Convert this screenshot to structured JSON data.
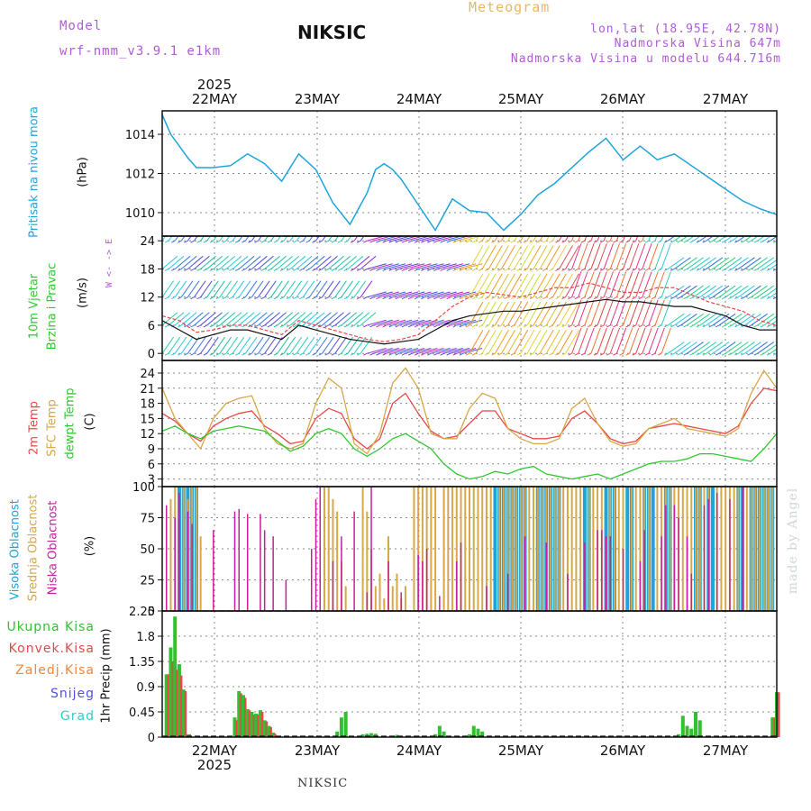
{
  "header": {
    "model_label": "Model",
    "model_name": "wrf-nmm_v3.9.1 e1km",
    "meteogram_label": "Meteogram",
    "station": "NIKSIC",
    "lonlat": "lon,lat (18.95E, 42.78N)",
    "altitude": "Nadmorska Visina 647m",
    "model_altitude": "Nadmorska Visina u modelu 644.716m"
  },
  "colors": {
    "pressure": "#1ea4dc",
    "t2m": "#e84848",
    "sfc": "#d8a848",
    "dewpt": "#30c830",
    "high_cloud": "#1ea4dc",
    "mid_cloud": "#d8a848",
    "low_cloud": "#c81e9c",
    "total_precip": "#30c030",
    "conv_precip": "#e84848",
    "frontal_precip": "#f08838",
    "snow": "#5050e0",
    "hail": "#38c8c8",
    "purple": "#b05cd8"
  },
  "time_axis": {
    "year": "2025",
    "days": [
      "22MAY",
      "23MAY",
      "24MAY",
      "25MAY",
      "26MAY",
      "27MAY"
    ]
  },
  "footer": "NIKSIC",
  "watermark": "made by Angel",
  "wind_compass": "W <- -> E",
  "chart_data": [
    {
      "panel": "pressure",
      "type": "line",
      "ylabel_name": "Pritisak na nivou mora",
      "ylabel_unit": "(hPa)",
      "yticks": [
        "1010",
        "1012",
        "1014"
      ],
      "ylim": [
        1008.8,
        1015.2
      ],
      "x_hours": [
        0,
        2,
        4,
        6,
        8,
        12,
        16,
        20,
        24,
        28,
        32,
        36,
        40,
        44,
        48,
        50,
        52,
        54,
        56,
        60,
        64,
        68,
        72,
        76,
        80,
        84,
        88,
        92,
        96,
        100,
        104,
        108,
        112,
        116,
        120,
        124,
        128,
        132,
        136,
        140,
        144
      ],
      "series": [
        {
          "values": [
            1015.0,
            1014.0,
            1013.4,
            1012.8,
            1012.3,
            1012.3,
            1012.4,
            1013.0,
            1012.5,
            1011.6,
            1013.0,
            1012.2,
            1010.5,
            1009.4,
            1011.0,
            1012.2,
            1012.5,
            1012.2,
            1011.7,
            1010.4,
            1009.1,
            1010.7,
            1010.1,
            1010.0,
            1009.1,
            1009.9,
            1010.9,
            1011.5,
            1012.3,
            1013.1,
            1013.8,
            1012.7,
            1013.4,
            1012.7,
            1013.0,
            1012.4,
            1011.8,
            1011.2,
            1010.6,
            1010.2,
            1009.9
          ]
        }
      ]
    },
    {
      "panel": "wind",
      "type": "line",
      "ylabel_name1": "10m Vjetar",
      "ylabel_name2": "Brzina i Pravac",
      "ylabel_unit": "(m/s)",
      "yticks": [
        "0",
        "6",
        "12",
        "18",
        "24"
      ],
      "ylim": [
        -1.5,
        25
      ],
      "x_hours": [
        0,
        4,
        8,
        12,
        16,
        20,
        24,
        28,
        32,
        36,
        40,
        44,
        48,
        52,
        56,
        60,
        64,
        68,
        72,
        76,
        80,
        84,
        88,
        92,
        96,
        100,
        104,
        108,
        112,
        116,
        120,
        124,
        128,
        132,
        136,
        140,
        144
      ],
      "series": [
        {
          "name": "speed",
          "values": [
            7,
            5,
            3,
            4,
            5,
            5,
            4,
            3,
            6,
            5,
            4,
            3,
            2.5,
            2,
            2.5,
            3,
            5,
            7,
            8,
            8.5,
            9,
            9,
            9.5,
            10,
            10.5,
            11,
            11.5,
            11,
            11,
            10.5,
            10,
            10,
            9,
            8,
            6,
            5,
            5
          ]
        },
        {
          "name": "gust",
          "values": [
            8,
            7,
            4.5,
            5,
            6,
            6,
            5,
            4,
            7,
            6,
            5,
            4,
            3,
            2.5,
            3,
            4,
            7,
            10,
            12,
            13,
            12.5,
            12,
            13,
            14,
            14,
            15,
            14,
            13,
            13,
            14,
            14,
            12.5,
            11,
            10,
            9,
            7,
            6
          ]
        }
      ]
    },
    {
      "panel": "temperature",
      "type": "line",
      "ylabel_name1": "2m Temp",
      "ylabel_name2": "SFC Temp",
      "ylabel_name3": "dewpt Temp",
      "ylabel_unit": "(C)",
      "yticks": [
        "3",
        "6",
        "9",
        "12",
        "15",
        "18",
        "21",
        "24"
      ],
      "ylim": [
        1.5,
        26.5
      ],
      "x_hours": [
        0,
        3,
        6,
        9,
        12,
        15,
        18,
        21,
        24,
        27,
        30,
        33,
        36,
        39,
        42,
        45,
        48,
        51,
        54,
        57,
        60,
        63,
        66,
        69,
        72,
        75,
        78,
        81,
        84,
        87,
        90,
        93,
        96,
        99,
        102,
        105,
        108,
        111,
        114,
        117,
        120,
        123,
        126,
        129,
        132,
        135,
        138,
        141,
        144
      ],
      "series": [
        {
          "name": "t2m",
          "values": [
            16,
            14.5,
            12,
            10.5,
            13.5,
            15,
            16,
            16.5,
            13.5,
            12,
            10,
            10.5,
            15,
            17,
            16,
            11,
            9,
            11,
            18,
            20,
            16,
            12.5,
            11,
            11.5,
            14,
            16.5,
            16.5,
            13,
            12,
            11,
            11,
            11.5,
            15,
            16.5,
            14,
            11,
            10,
            10.5,
            13,
            13.5,
            14,
            13.5,
            13,
            12.5,
            12,
            13.5,
            18,
            21,
            20.5
          ]
        },
        {
          "name": "sfc",
          "values": [
            21,
            15,
            12,
            9,
            15,
            18,
            19,
            19.5,
            13,
            10,
            9,
            10,
            18,
            23,
            21,
            10,
            8,
            12,
            22,
            25,
            21,
            12,
            11,
            11,
            17,
            20,
            19,
            13,
            11,
            10,
            10,
            11,
            17,
            19,
            14,
            10.5,
            9.5,
            10,
            13,
            14,
            15,
            13,
            12.5,
            12,
            11.5,
            13,
            20,
            24.5,
            21
          ]
        },
        {
          "name": "dewpt",
          "values": [
            12.5,
            13.5,
            12,
            11,
            12.5,
            13,
            13.5,
            13,
            12.5,
            10.5,
            8.5,
            9.5,
            12,
            13,
            12,
            9,
            7.5,
            9,
            11,
            12,
            10.5,
            9,
            6,
            4,
            3,
            3.5,
            4.5,
            4,
            5,
            5.5,
            4,
            3.5,
            3,
            3.5,
            4,
            3,
            4,
            5,
            6,
            6.5,
            6.5,
            7,
            8,
            8,
            7.5,
            7,
            6.5,
            9,
            12
          ]
        }
      ]
    },
    {
      "panel": "cloud",
      "type": "bar",
      "ylabel_name1": "Visoka Oblacnost",
      "ylabel_name2": "Srednja Oblacnost",
      "ylabel_name3": "Niska Oblacnost",
      "ylabel_unit": "(%)",
      "yticks": [
        "0",
        "25",
        "50",
        "75",
        "100"
      ],
      "ylim": [
        0,
        100
      ],
      "high": {
        "x": [
          4,
          5,
          6,
          7,
          8,
          78,
          79,
          80,
          81,
          82,
          83,
          84,
          85,
          88,
          89,
          90,
          91,
          92,
          93,
          99,
          100,
          104,
          105,
          106,
          109,
          110,
          113,
          114,
          115,
          118,
          119,
          125,
          126,
          128,
          129,
          135,
          136,
          138,
          139,
          140,
          141,
          142,
          143
        ],
        "values": [
          100,
          100,
          100,
          100,
          100,
          100,
          100,
          100,
          100,
          100,
          100,
          100,
          100,
          100,
          100,
          100,
          100,
          100,
          100,
          100,
          100,
          100,
          100,
          100,
          100,
          100,
          100,
          100,
          100,
          100,
          100,
          100,
          100,
          100,
          100,
          100,
          100,
          100,
          100,
          100,
          100,
          100,
          100
        ]
      },
      "mid": {
        "x": [
          2,
          3,
          5,
          6,
          7,
          8,
          9,
          38,
          39,
          40,
          41,
          42,
          43,
          47,
          48,
          49,
          50,
          51,
          52,
          53,
          54,
          55,
          56,
          57,
          59,
          60,
          61,
          62,
          63,
          64,
          66,
          67,
          68,
          69,
          70,
          71,
          72,
          73,
          74,
          75,
          76,
          77,
          79,
          80,
          81,
          82,
          83,
          84,
          85,
          86,
          87,
          88,
          89,
          90,
          91,
          92,
          93,
          94,
          95,
          96,
          97,
          98,
          100,
          101,
          102,
          103,
          105,
          106,
          107,
          108,
          110,
          111,
          112,
          113,
          114,
          116,
          117,
          118,
          119,
          120,
          121,
          122,
          123,
          124,
          125,
          126,
          127,
          128,
          130,
          131,
          132,
          133,
          134,
          135,
          137,
          138,
          139,
          140,
          141,
          142,
          143
        ],
        "values": [
          90,
          100,
          100,
          90,
          100,
          100,
          60,
          100,
          100,
          90,
          80,
          40,
          20,
          100,
          80,
          50,
          20,
          30,
          10,
          60,
          20,
          30,
          10,
          20,
          100,
          100,
          100,
          100,
          100,
          100,
          100,
          100,
          100,
          100,
          100,
          100,
          100,
          100,
          100,
          100,
          100,
          100,
          100,
          100,
          100,
          100,
          100,
          100,
          100,
          100,
          100,
          100,
          100,
          100,
          100,
          100,
          100,
          100,
          100,
          100,
          100,
          100,
          100,
          100,
          100,
          100,
          100,
          100,
          100,
          100,
          100,
          100,
          100,
          100,
          100,
          100,
          100,
          100,
          100,
          100,
          100,
          100,
          100,
          100,
          100,
          100,
          100,
          100,
          100,
          100,
          100,
          100,
          100,
          100,
          100,
          100,
          100,
          100,
          100,
          100,
          100
        ]
      },
      "low": {
        "x": [
          1,
          3,
          4,
          6,
          7,
          12,
          17,
          18,
          20,
          23,
          24,
          26,
          29,
          35,
          36,
          37,
          40,
          42,
          45,
          48,
          49,
          53,
          56,
          60,
          61,
          62,
          65,
          69,
          70,
          76,
          81,
          85,
          90,
          95,
          99,
          102,
          103,
          104,
          105,
          108,
          112,
          113,
          117,
          118,
          120,
          121,
          123,
          124,
          127,
          128,
          130,
          133,
          136
        ],
        "values": [
          85,
          75,
          95,
          80,
          70,
          65,
          80,
          82,
          78,
          78,
          65,
          60,
          25,
          50,
          90,
          100,
          40,
          60,
          80,
          15,
          100,
          40,
          15,
          45,
          40,
          50,
          12,
          40,
          55,
          20,
          30,
          60,
          55,
          30,
          55,
          65,
          65,
          60,
          60,
          50,
          40,
          65,
          60,
          85,
          85,
          75,
          60,
          30,
          85,
          90,
          95,
          90,
          100
        ]
      }
    },
    {
      "panel": "precip",
      "type": "bar",
      "ylabel_name": "1hr Precip (mm)",
      "yticks": [
        "0",
        "0.45",
        "0.9",
        "1.35",
        "1.8",
        "2.25"
      ],
      "ylim": [
        0,
        2.25
      ],
      "legend": [
        "Ukupna Kisa",
        "Konvek.Kisa",
        "Zaledj.Kisa",
        "Snijeg",
        "Grad"
      ],
      "x_hours": [
        1,
        2,
        3,
        4,
        5,
        6,
        17,
        18,
        19,
        20,
        21,
        22,
        23,
        24,
        25,
        26,
        41,
        42,
        43,
        47,
        48,
        49,
        50,
        55,
        64,
        65,
        66,
        72,
        73,
        74,
        75,
        121,
        122,
        123,
        124,
        125,
        126,
        143,
        144
      ],
      "total": [
        1.12,
        1.6,
        2.15,
        1.3,
        0.85,
        0.05,
        0.35,
        0.82,
        0.75,
        0.5,
        0.45,
        0.42,
        0.48,
        0.3,
        0.2,
        0.08,
        0.1,
        0.35,
        0.45,
        0.05,
        0.06,
        0.07,
        0.06,
        0.04,
        0.05,
        0.2,
        0.1,
        0.05,
        0.2,
        0.15,
        0.1,
        0.05,
        0.38,
        0.2,
        0.15,
        0.45,
        0.3,
        0.35,
        0.8
      ],
      "convective": [
        1.12,
        1.35,
        1.2,
        1.1,
        0.82,
        0.05,
        0.3,
        0.78,
        0.7,
        0.48,
        0.4,
        0.4,
        0.45,
        0.28,
        0.18,
        0.06,
        0.0,
        0.0,
        0.0,
        0.0,
        0.0,
        0.0,
        0.0,
        0.0,
        0.0,
        0.0,
        0.0,
        0.0,
        0.0,
        0.0,
        0.0,
        0.0,
        0.0,
        0.0,
        0.0,
        0.0,
        0.0,
        0.35,
        0.8
      ]
    }
  ]
}
